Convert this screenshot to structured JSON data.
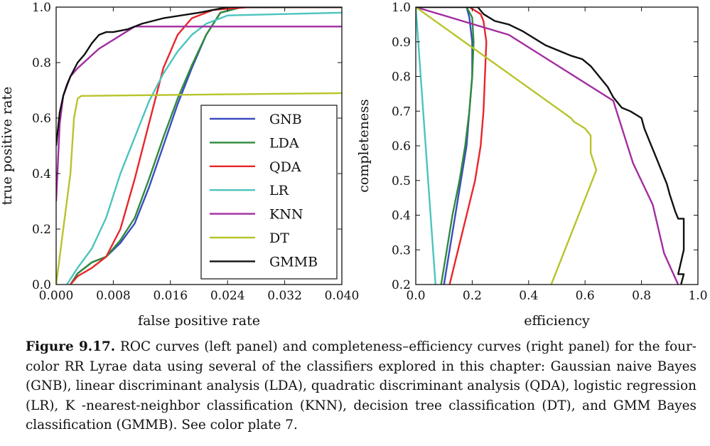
{
  "chart_data": [
    {
      "type": "line",
      "title": "",
      "xlabel": "false positive rate",
      "ylabel": "true positive rate",
      "xlim": [
        0.0,
        0.04
      ],
      "ylim": [
        0.0,
        1.0
      ],
      "xticks": [
        "0.000",
        "0.008",
        "0.016",
        "0.024",
        "0.032",
        "0.040"
      ],
      "yticks": [
        "0.0",
        "0.2",
        "0.4",
        "0.6",
        "0.8",
        "1.0"
      ],
      "legend_position": "lower right",
      "series": [
        {
          "name": "GNB",
          "color": "#3b4cc0",
          "points": [
            [
              0.002,
              0.0
            ],
            [
              0.003,
              0.04
            ],
            [
              0.005,
              0.08
            ],
            [
              0.007,
              0.1
            ],
            [
              0.009,
              0.15
            ],
            [
              0.011,
              0.22
            ],
            [
              0.013,
              0.35
            ],
            [
              0.015,
              0.5
            ],
            [
              0.017,
              0.65
            ],
            [
              0.019,
              0.78
            ],
            [
              0.021,
              0.9
            ],
            [
              0.023,
              0.98
            ],
            [
              0.026,
              1.0
            ],
            [
              0.031,
              1.0
            ]
          ]
        },
        {
          "name": "LDA",
          "color": "#2e8b3a",
          "points": [
            [
              0.002,
              0.0
            ],
            [
              0.003,
              0.04
            ],
            [
              0.005,
              0.08
            ],
            [
              0.007,
              0.1
            ],
            [
              0.009,
              0.16
            ],
            [
              0.011,
              0.24
            ],
            [
              0.013,
              0.38
            ],
            [
              0.015,
              0.53
            ],
            [
              0.017,
              0.67
            ],
            [
              0.019,
              0.79
            ],
            [
              0.021,
              0.9
            ],
            [
              0.023,
              0.98
            ],
            [
              0.026,
              1.0
            ],
            [
              0.04,
              1.0
            ]
          ]
        },
        {
          "name": "QDA",
          "color": "#e8262a",
          "points": [
            [
              0.002,
              0.0
            ],
            [
              0.003,
              0.03
            ],
            [
              0.005,
              0.06
            ],
            [
              0.007,
              0.1
            ],
            [
              0.009,
              0.2
            ],
            [
              0.011,
              0.38
            ],
            [
              0.013,
              0.58
            ],
            [
              0.015,
              0.78
            ],
            [
              0.017,
              0.9
            ],
            [
              0.019,
              0.96
            ],
            [
              0.022,
              0.99
            ],
            [
              0.027,
              1.0
            ],
            [
              0.04,
              1.0
            ]
          ]
        },
        {
          "name": "LR",
          "color": "#4cc4bd",
          "points": [
            [
              0.0015,
              0.0
            ],
            [
              0.003,
              0.06
            ],
            [
              0.005,
              0.13
            ],
            [
              0.007,
              0.24
            ],
            [
              0.009,
              0.4
            ],
            [
              0.011,
              0.53
            ],
            [
              0.013,
              0.66
            ],
            [
              0.015,
              0.76
            ],
            [
              0.017,
              0.84
            ],
            [
              0.019,
              0.9
            ],
            [
              0.021,
              0.94
            ],
            [
              0.024,
              0.97
            ],
            [
              0.04,
              0.98
            ]
          ]
        },
        {
          "name": "KNN",
          "color": "#a22ca0",
          "points": [
            [
              0.0,
              0.3
            ],
            [
              0.0005,
              0.58
            ],
            [
              0.001,
              0.68
            ],
            [
              0.002,
              0.75
            ],
            [
              0.003,
              0.78
            ],
            [
              0.006,
              0.85
            ],
            [
              0.011,
              0.93
            ],
            [
              0.04,
              0.93
            ]
          ]
        },
        {
          "name": "DT",
          "color": "#b8c42a",
          "points": [
            [
              0.0,
              0.0
            ],
            [
              0.001,
              0.2
            ],
            [
              0.002,
              0.4
            ],
            [
              0.0025,
              0.6
            ],
            [
              0.003,
              0.67
            ],
            [
              0.0035,
              0.68
            ],
            [
              0.04,
              0.69
            ]
          ]
        },
        {
          "name": "GMMB",
          "color": "#111111",
          "points": [
            [
              0.0,
              0.5
            ],
            [
              0.0005,
              0.62
            ],
            [
              0.001,
              0.68
            ],
            [
              0.0015,
              0.72
            ],
            [
              0.002,
              0.75
            ],
            [
              0.003,
              0.8
            ],
            [
              0.004,
              0.83
            ],
            [
              0.005,
              0.87
            ],
            [
              0.006,
              0.9
            ],
            [
              0.007,
              0.91
            ],
            [
              0.008,
              0.91
            ],
            [
              0.01,
              0.92
            ],
            [
              0.012,
              0.94
            ],
            [
              0.015,
              0.96
            ],
            [
              0.02,
              0.98
            ],
            [
              0.022,
              0.99
            ],
            [
              0.024,
              1.0
            ],
            [
              0.04,
              1.0
            ]
          ]
        }
      ]
    },
    {
      "type": "line",
      "title": "",
      "xlabel": "efficiency",
      "ylabel": "completeness",
      "xlim": [
        0.0,
        1.0
      ],
      "ylim": [
        0.2,
        1.0
      ],
      "xticks": [
        "0.0",
        "0.2",
        "0.4",
        "0.6",
        "0.8",
        "1.0"
      ],
      "yticks": [
        "0.2",
        "0.3",
        "0.4",
        "0.5",
        "0.6",
        "0.7",
        "0.8",
        "0.9",
        "1.0"
      ],
      "series": [
        {
          "name": "GNB",
          "color": "#3b4cc0",
          "points": [
            [
              0.1,
              0.2
            ],
            [
              0.12,
              0.3
            ],
            [
              0.14,
              0.4
            ],
            [
              0.16,
              0.5
            ],
            [
              0.18,
              0.6
            ],
            [
              0.19,
              0.7
            ],
            [
              0.2,
              0.8
            ],
            [
              0.2,
              0.9
            ],
            [
              0.19,
              0.97
            ],
            [
              0.18,
              1.0
            ]
          ]
        },
        {
          "name": "LDA",
          "color": "#2e8b3a",
          "points": [
            [
              0.09,
              0.2
            ],
            [
              0.11,
              0.3
            ],
            [
              0.13,
              0.4
            ],
            [
              0.155,
              0.5
            ],
            [
              0.175,
              0.6
            ],
            [
              0.19,
              0.7
            ],
            [
              0.2,
              0.8
            ],
            [
              0.205,
              0.9
            ],
            [
              0.2,
              0.97
            ],
            [
              0.18,
              1.0
            ]
          ]
        },
        {
          "name": "QDA",
          "color": "#e8262a",
          "points": [
            [
              0.12,
              0.2
            ],
            [
              0.15,
              0.3
            ],
            [
              0.18,
              0.4
            ],
            [
              0.21,
              0.5
            ],
            [
              0.23,
              0.6
            ],
            [
              0.24,
              0.7
            ],
            [
              0.245,
              0.8
            ],
            [
              0.25,
              0.9
            ],
            [
              0.24,
              0.96
            ],
            [
              0.23,
              0.98
            ],
            [
              0.19,
              1.0
            ]
          ]
        },
        {
          "name": "LR",
          "color": "#4cc4bd",
          "points": [
            [
              0.07,
              0.2
            ],
            [
              0.0,
              1.0
            ]
          ]
        },
        {
          "name": "KNN",
          "color": "#a22ca0",
          "points": [
            [
              0.0,
              1.0
            ],
            [
              0.33,
              0.92
            ],
            [
              0.7,
              0.73
            ],
            [
              0.77,
              0.55
            ],
            [
              0.84,
              0.43
            ],
            [
              0.88,
              0.29
            ],
            [
              0.93,
              0.2
            ]
          ]
        },
        {
          "name": "DT",
          "color": "#b8c42a",
          "points": [
            [
              0.0,
              1.0
            ],
            [
              0.55,
              0.68
            ],
            [
              0.56,
              0.67
            ],
            [
              0.6,
              0.65
            ],
            [
              0.62,
              0.63
            ],
            [
              0.62,
              0.58
            ],
            [
              0.64,
              0.53
            ],
            [
              0.48,
              0.2
            ]
          ]
        },
        {
          "name": "GMMB",
          "color": "#111111",
          "points": [
            [
              0.0,
              1.0
            ],
            [
              0.22,
              1.0
            ],
            [
              0.24,
              0.98
            ],
            [
              0.28,
              0.96
            ],
            [
              0.33,
              0.95
            ],
            [
              0.38,
              0.93
            ],
            [
              0.42,
              0.91
            ],
            [
              0.46,
              0.89
            ],
            [
              0.52,
              0.87
            ],
            [
              0.55,
              0.86
            ],
            [
              0.59,
              0.85
            ],
            [
              0.62,
              0.83
            ],
            [
              0.64,
              0.81
            ],
            [
              0.66,
              0.79
            ],
            [
              0.68,
              0.77
            ],
            [
              0.7,
              0.74
            ],
            [
              0.73,
              0.71
            ],
            [
              0.76,
              0.7
            ],
            [
              0.78,
              0.69
            ],
            [
              0.8,
              0.68
            ],
            [
              0.81,
              0.65
            ],
            [
              0.83,
              0.61
            ],
            [
              0.85,
              0.57
            ],
            [
              0.87,
              0.53
            ],
            [
              0.89,
              0.49
            ],
            [
              0.9,
              0.46
            ],
            [
              0.92,
              0.41
            ],
            [
              0.93,
              0.39
            ],
            [
              0.95,
              0.39
            ],
            [
              0.95,
              0.34
            ],
            [
              0.95,
              0.3
            ],
            [
              0.93,
              0.23
            ],
            [
              0.95,
              0.23
            ],
            [
              0.94,
              0.2
            ]
          ]
        }
      ]
    }
  ],
  "caption": {
    "label": "Figure 9.17.",
    "text": "ROC curves (left panel) and completeness–efficiency curves (right panel) for the four-color RR Lyrae data using several of the classifiers explored in this chapter: Gaussian naive Bayes (GNB), linear discriminant analysis (LDA), quadratic discriminant analysis (QDA), logistic regression (LR), K -nearest-neighbor classification (KNN), decision tree classification (DT), and GMM Bayes classification (GMMB). See color plate 7."
  }
}
